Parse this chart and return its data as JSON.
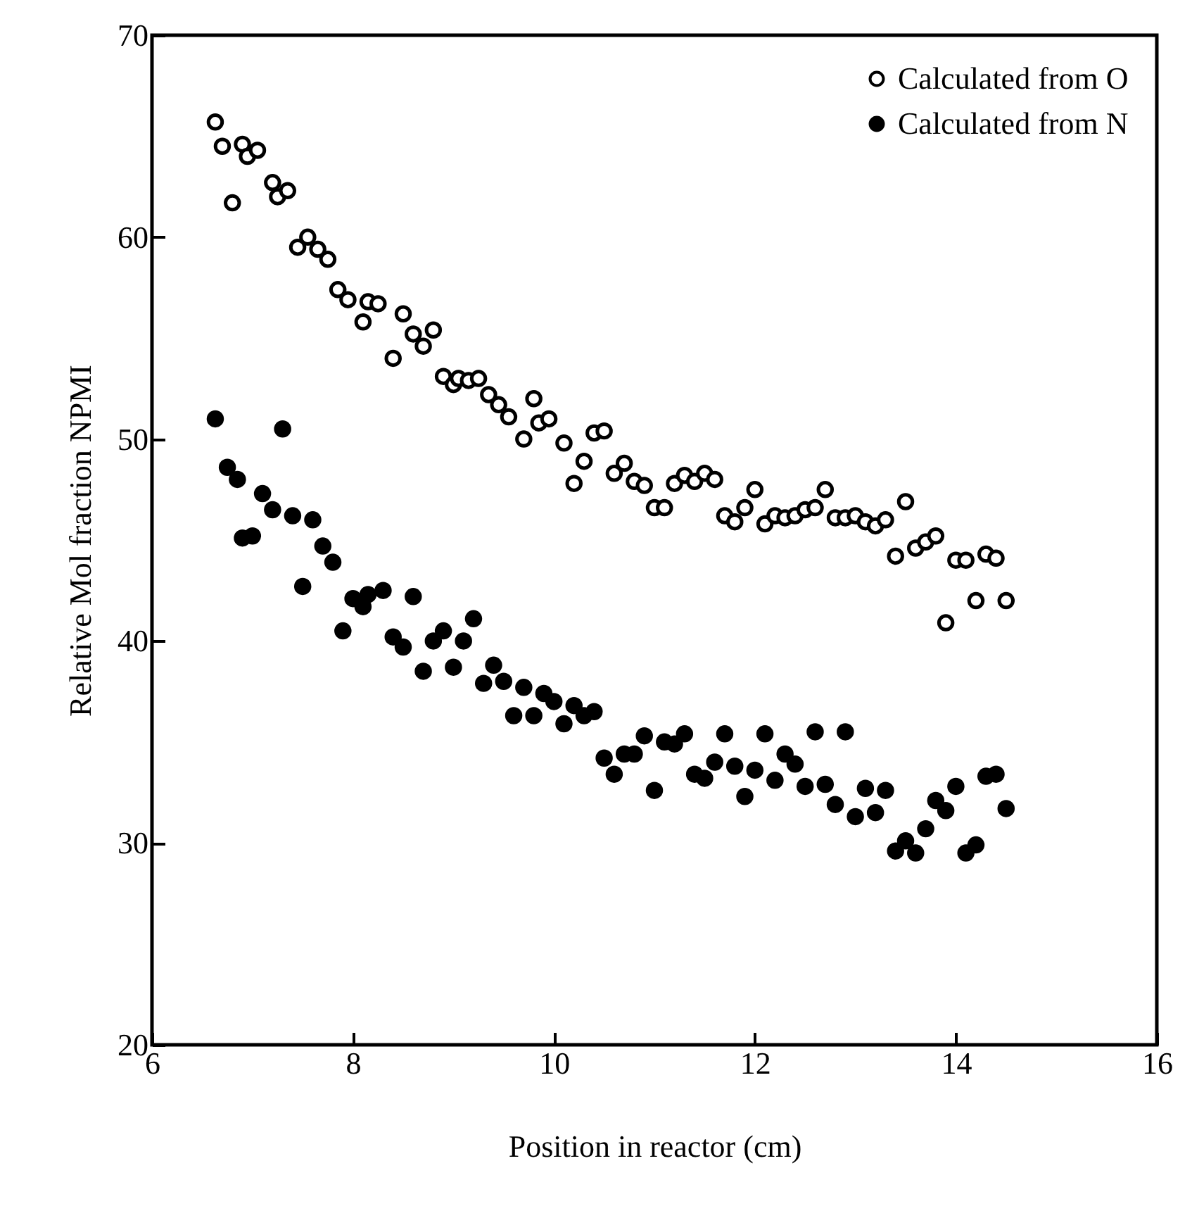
{
  "chart_data": {
    "type": "scatter",
    "xlabel": "Position in reactor  (cm)",
    "ylabel": "Relative Mol fraction NPMI",
    "xlim": [
      6,
      16
    ],
    "xticks": [
      6,
      8,
      10,
      12,
      14,
      16
    ],
    "ylim": [
      20,
      70
    ],
    "yticks": [
      20,
      30,
      40,
      50,
      60,
      70
    ],
    "legend": "top right",
    "marker": "circle",
    "grid": false,
    "series": [
      {
        "name": "Calculated from O",
        "color": "#000000",
        "marker": "circle-open",
        "x": [
          6.63,
          6.7,
          6.8,
          6.9,
          6.95,
          7.05,
          7.2,
          7.25,
          7.35,
          7.45,
          7.55,
          7.65,
          7.75,
          7.85,
          7.95,
          8.1,
          8.15,
          8.25,
          8.4,
          8.5,
          8.6,
          8.7,
          8.8,
          8.9,
          9.0,
          9.05,
          9.15,
          9.25,
          9.35,
          9.45,
          9.55,
          9.7,
          9.8,
          9.85,
          9.95,
          10.1,
          10.2,
          10.3,
          10.4,
          10.5,
          10.6,
          10.7,
          10.8,
          10.9,
          11.0,
          11.1,
          11.2,
          11.3,
          11.4,
          11.5,
          11.6,
          11.7,
          11.8,
          11.9,
          12.0,
          12.1,
          12.2,
          12.3,
          12.4,
          12.5,
          12.6,
          12.7,
          12.8,
          12.9,
          13.0,
          13.1,
          13.2,
          13.3,
          13.4,
          13.5,
          13.6,
          13.7,
          13.8,
          13.9,
          14.0,
          14.1,
          14.2,
          14.3,
          14.4,
          14.5
        ],
        "values": [
          65.7,
          64.5,
          61.7,
          64.6,
          64.0,
          64.3,
          62.7,
          62.0,
          62.3,
          59.5,
          60.0,
          59.4,
          58.9,
          57.4,
          56.9,
          55.8,
          56.8,
          56.7,
          54.0,
          56.2,
          55.2,
          54.6,
          55.4,
          53.1,
          52.7,
          53.0,
          52.9,
          53.0,
          52.2,
          51.7,
          51.1,
          50.0,
          52.0,
          50.8,
          51.0,
          49.8,
          47.8,
          48.9,
          50.3,
          50.4,
          48.3,
          48.8,
          47.9,
          47.7,
          46.6,
          46.6,
          47.8,
          48.2,
          47.9,
          48.3,
          48.0,
          46.2,
          45.9,
          46.6,
          47.5,
          45.8,
          46.2,
          46.1,
          46.2,
          46.5,
          46.6,
          47.5,
          46.1,
          46.1,
          46.2,
          45.9,
          45.7,
          46.0,
          44.2,
          46.9,
          44.6,
          44.9,
          45.2,
          40.9,
          44.0,
          44.0,
          42.0,
          44.3,
          44.1,
          42.0
        ]
      },
      {
        "name": "Calculated from N",
        "color": "#000000",
        "x": [
          6.63,
          6.75,
          6.85,
          6.9,
          7.0,
          7.1,
          7.2,
          7.3,
          7.4,
          7.5,
          7.6,
          7.7,
          7.8,
          7.9,
          8.0,
          8.1,
          8.15,
          8.3,
          8.4,
          8.5,
          8.6,
          8.7,
          8.8,
          8.9,
          9.0,
          9.1,
          9.2,
          9.3,
          9.4,
          9.5,
          9.6,
          9.7,
          9.8,
          9.9,
          10.0,
          10.1,
          10.2,
          10.3,
          10.4,
          10.5,
          10.6,
          10.7,
          10.8,
          10.9,
          11.0,
          11.1,
          11.2,
          11.3,
          11.4,
          11.5,
          11.6,
          11.7,
          11.8,
          11.9,
          12.0,
          12.1,
          12.2,
          12.3,
          12.4,
          12.5,
          12.6,
          12.7,
          12.8,
          12.9,
          13.0,
          13.1,
          13.2,
          13.3,
          13.4,
          13.5,
          13.6,
          13.7,
          13.8,
          13.9,
          14.0,
          14.1,
          14.2,
          14.3,
          14.4,
          14.5
        ],
        "values": [
          51.0,
          48.6,
          48.0,
          45.1,
          45.2,
          47.3,
          46.5,
          50.5,
          46.2,
          42.7,
          46.0,
          44.7,
          43.9,
          40.5,
          42.1,
          41.7,
          42.3,
          42.5,
          40.2,
          39.7,
          42.2,
          38.5,
          40.0,
          40.5,
          38.7,
          40.0,
          41.1,
          37.9,
          38.8,
          38.0,
          36.3,
          37.7,
          36.3,
          37.4,
          37.0,
          35.9,
          36.8,
          36.3,
          36.5,
          34.2,
          33.4,
          34.4,
          34.4,
          35.3,
          32.6,
          35.0,
          34.9,
          35.4,
          33.4,
          33.2,
          34.0,
          35.4,
          33.8,
          32.3,
          33.6,
          35.4,
          33.1,
          34.4,
          33.9,
          32.8,
          35.5,
          32.9,
          31.9,
          35.5,
          31.3,
          32.7,
          31.5,
          32.6,
          29.6,
          30.1,
          29.5,
          30.7,
          32.1,
          31.6,
          32.8,
          29.5,
          29.9,
          33.3,
          33.4,
          31.7
        ]
      }
    ]
  }
}
